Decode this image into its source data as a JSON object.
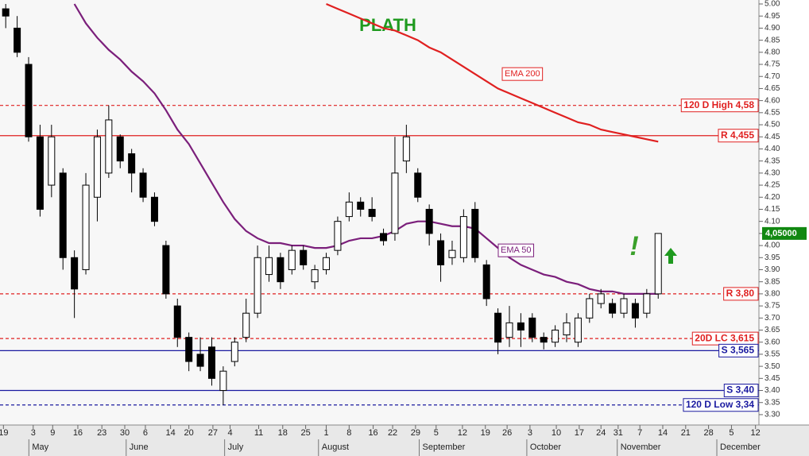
{
  "chart_data": {
    "type": "candlestick",
    "title": "PLATH",
    "up_color": "#ffffff",
    "down_color": "#000000",
    "open": [
      4.98,
      4.9,
      4.75,
      4.45,
      4.25,
      4.3,
      3.95,
      3.9,
      4.2,
      4.3,
      4.45,
      4.38,
      4.3,
      4.2,
      4.0,
      3.75,
      3.62,
      3.55,
      3.58,
      3.4,
      3.52,
      3.62,
      3.72,
      3.88,
      3.95,
      3.9,
      3.98,
      3.85,
      3.9,
      3.98,
      4.12,
      4.18,
      4.15,
      4.05,
      4.05,
      4.35,
      4.3,
      4.15,
      4.02,
      3.95,
      3.95,
      4.15,
      3.92,
      3.72,
      3.62,
      3.68,
      3.7,
      3.62,
      3.6,
      3.63,
      3.6,
      3.7,
      3.76,
      3.76,
      3.72,
      3.76,
      3.72,
      3.8
    ],
    "high": [
      5.0,
      4.95,
      4.78,
      4.5,
      4.5,
      4.32,
      3.98,
      4.3,
      4.48,
      4.58,
      4.46,
      4.4,
      4.32,
      4.22,
      4.02,
      3.78,
      3.64,
      3.62,
      3.62,
      3.5,
      3.62,
      3.78,
      4.0,
      4.0,
      3.97,
      4.0,
      4.0,
      3.92,
      3.97,
      4.12,
      4.22,
      4.2,
      4.2,
      4.07,
      4.45,
      4.5,
      4.32,
      4.17,
      4.05,
      4.02,
      4.15,
      4.18,
      3.94,
      3.74,
      3.75,
      3.72,
      3.72,
      3.64,
      3.67,
      3.72,
      3.72,
      3.8,
      3.82,
      3.78,
      3.8,
      3.78,
      3.82,
      4.05
    ],
    "low": [
      4.9,
      4.78,
      4.43,
      4.12,
      4.2,
      3.9,
      3.7,
      3.88,
      4.1,
      4.28,
      4.32,
      4.22,
      4.18,
      4.08,
      3.78,
      3.58,
      3.48,
      3.48,
      3.42,
      3.34,
      3.5,
      3.6,
      3.7,
      3.85,
      3.82,
      3.88,
      3.9,
      3.82,
      3.88,
      3.96,
      4.1,
      4.12,
      4.1,
      4.0,
      4.02,
      4.3,
      4.18,
      4.0,
      3.85,
      3.92,
      3.93,
      3.93,
      3.75,
      3.55,
      3.58,
      3.58,
      3.6,
      3.57,
      3.58,
      3.6,
      3.58,
      3.68,
      3.74,
      3.7,
      3.7,
      3.66,
      3.7,
      3.78
    ],
    "close": [
      4.95,
      4.8,
      4.45,
      4.15,
      4.45,
      3.95,
      3.82,
      4.25,
      4.45,
      4.52,
      4.35,
      4.3,
      4.2,
      4.1,
      3.8,
      3.62,
      3.52,
      3.5,
      3.45,
      3.48,
      3.6,
      3.72,
      3.95,
      3.95,
      3.85,
      3.98,
      3.92,
      3.9,
      3.95,
      4.1,
      4.18,
      4.15,
      4.12,
      4.02,
      4.3,
      4.45,
      4.2,
      4.05,
      3.92,
      3.98,
      4.12,
      3.95,
      3.78,
      3.6,
      3.68,
      3.65,
      3.62,
      3.6,
      3.65,
      3.68,
      3.7,
      3.78,
      3.8,
      3.72,
      3.78,
      3.7,
      3.8,
      4.05
    ],
    "series": [
      {
        "name": "EMA 50",
        "color": "#7b1f7b",
        "values": [
          null,
          null,
          null,
          null,
          null,
          null,
          5.0,
          4.92,
          4.86,
          4.81,
          4.77,
          4.72,
          4.68,
          4.63,
          4.56,
          4.48,
          4.42,
          4.34,
          4.26,
          4.18,
          4.11,
          4.06,
          4.03,
          4.01,
          4.01,
          4.0,
          4.0,
          3.99,
          3.99,
          4.0,
          4.02,
          4.03,
          4.03,
          4.04,
          4.06,
          4.09,
          4.1,
          4.1,
          4.09,
          4.08,
          4.08,
          4.07,
          4.03,
          3.99,
          3.95,
          3.92,
          3.9,
          3.88,
          3.87,
          3.85,
          3.84,
          3.82,
          3.81,
          3.81,
          3.8,
          3.8,
          3.8,
          3.8
        ]
      },
      {
        "name": "EMA 200",
        "color": "#e02020",
        "values": [
          null,
          null,
          null,
          null,
          null,
          null,
          null,
          null,
          null,
          null,
          null,
          null,
          null,
          null,
          null,
          null,
          null,
          null,
          null,
          null,
          null,
          null,
          null,
          null,
          null,
          null,
          null,
          null,
          5.0,
          4.98,
          4.96,
          4.94,
          4.92,
          4.9,
          4.89,
          4.87,
          4.85,
          4.82,
          4.8,
          4.77,
          4.74,
          4.71,
          4.68,
          4.65,
          4.63,
          4.61,
          4.59,
          4.57,
          4.55,
          4.53,
          4.51,
          4.5,
          4.48,
          4.47,
          4.46,
          4.45,
          4.44,
          4.43
        ]
      }
    ],
    "levels": [
      {
        "label": "120 D High 4,58",
        "value": 4.58,
        "color": "#e02020",
        "style": "dashed"
      },
      {
        "label": "R 4,455",
        "value": 4.455,
        "color": "#e02020",
        "style": "solid"
      },
      {
        "label": "R 3,80",
        "value": 3.8,
        "color": "#e02020",
        "style": "dashed"
      },
      {
        "label": "20D LC 3,615",
        "value": 3.615,
        "color": "#e02020",
        "style": "dashed"
      },
      {
        "label": "S 3,565",
        "value": 3.565,
        "color": "#1a1aa0",
        "style": "solid"
      },
      {
        "label": "S 3,40",
        "value": 3.4,
        "color": "#1a1aa0",
        "style": "solid"
      },
      {
        "label": "120 D Low 3,34",
        "value": 3.34,
        "color": "#1a1aa0",
        "style": "dashed"
      }
    ],
    "last_price": {
      "value": 4.05,
      "label": "4,05000",
      "color": "#118811"
    },
    "annotations": [
      "!"
    ],
    "ylim": [
      3.257,
      5.0
    ],
    "yticks": [
      {
        "value": 5.0,
        "label": "5.00"
      },
      4.95,
      {
        "value": 4.9,
        "label": "4.90"
      },
      4.85,
      {
        "value": 4.8,
        "label": "4.80"
      },
      4.75,
      {
        "value": 4.7,
        "label": "4.70"
      },
      4.65,
      {
        "value": 4.6,
        "label": "4.60"
      },
      4.55,
      {
        "value": 4.5,
        "label": "4.50"
      },
      4.45,
      {
        "value": 4.4,
        "label": "4.40"
      },
      4.35,
      {
        "value": 4.3,
        "label": "4.30"
      },
      4.25,
      {
        "value": 4.2,
        "label": "4.20"
      },
      4.15,
      {
        "value": 4.1,
        "label": "4.10"
      },
      4.05,
      {
        "value": 4.0,
        "label": "4.00"
      },
      3.95,
      {
        "value": 3.9,
        "label": "3.90"
      },
      3.85,
      {
        "value": 3.8,
        "label": "3.80"
      },
      3.75,
      {
        "value": 3.7,
        "label": "3.70"
      },
      3.65,
      {
        "value": 3.6,
        "label": "3.60"
      },
      3.55,
      {
        "value": 3.5,
        "label": "3.50"
      },
      3.45,
      {
        "value": 3.4,
        "label": "3.40"
      },
      3.35,
      {
        "value": 3.3,
        "label": "3.30"
      }
    ],
    "xlim": [
      -0.5,
      65.8
    ],
    "xticks": [
      {
        "value": -0.2,
        "label": "19"
      },
      {
        "value": 2.4,
        "label": "3"
      },
      {
        "value": 4.1,
        "label": "9"
      },
      {
        "value": 6.3,
        "label": "16"
      },
      {
        "value": 8.4,
        "label": "23"
      },
      {
        "value": 10.4,
        "label": "30"
      },
      {
        "value": 12.2,
        "label": "6"
      },
      {
        "value": 14.4,
        "label": "14"
      },
      {
        "value": 16.0,
        "label": "20"
      },
      {
        "value": 18.1,
        "label": "27"
      },
      {
        "value": 19.6,
        "label": "4"
      },
      {
        "value": 22.1,
        "label": "11"
      },
      {
        "value": 24.2,
        "label": "18"
      },
      {
        "value": 26.2,
        "label": "25"
      },
      {
        "value": 28.0,
        "label": "1"
      },
      {
        "value": 30.0,
        "label": "8"
      },
      {
        "value": 32.1,
        "label": "16"
      },
      {
        "value": 33.8,
        "label": "22"
      },
      {
        "value": 35.8,
        "label": "29"
      },
      {
        "value": 37.6,
        "label": "5"
      },
      {
        "value": 39.9,
        "label": "12"
      },
      {
        "value": 41.9,
        "label": "19"
      },
      {
        "value": 43.8,
        "label": "26"
      },
      {
        "value": 45.8,
        "label": "3"
      },
      {
        "value": 48.1,
        "label": "10"
      },
      {
        "value": 50.1,
        "label": "17"
      },
      {
        "value": 52.0,
        "label": "24"
      },
      {
        "value": 53.5,
        "label": "31"
      },
      {
        "value": 55.4,
        "label": "7"
      },
      {
        "value": 57.4,
        "label": "14"
      },
      {
        "value": 59.4,
        "label": "21"
      },
      {
        "value": 61.4,
        "label": "28"
      },
      {
        "value": 63.4,
        "label": "5"
      },
      {
        "value": 65.5,
        "label": "12"
      }
    ],
    "month_ticks": [
      {
        "value": 2.3,
        "label": "May"
      },
      {
        "value": 10.8,
        "label": "June"
      },
      {
        "value": 19.4,
        "label": "July"
      },
      {
        "value": 27.6,
        "label": "August"
      },
      {
        "value": 36.4,
        "label": "September"
      },
      {
        "value": 45.8,
        "label": "October"
      },
      {
        "value": 53.7,
        "label": "November"
      },
      {
        "value": 62.4,
        "label": "December"
      }
    ]
  }
}
